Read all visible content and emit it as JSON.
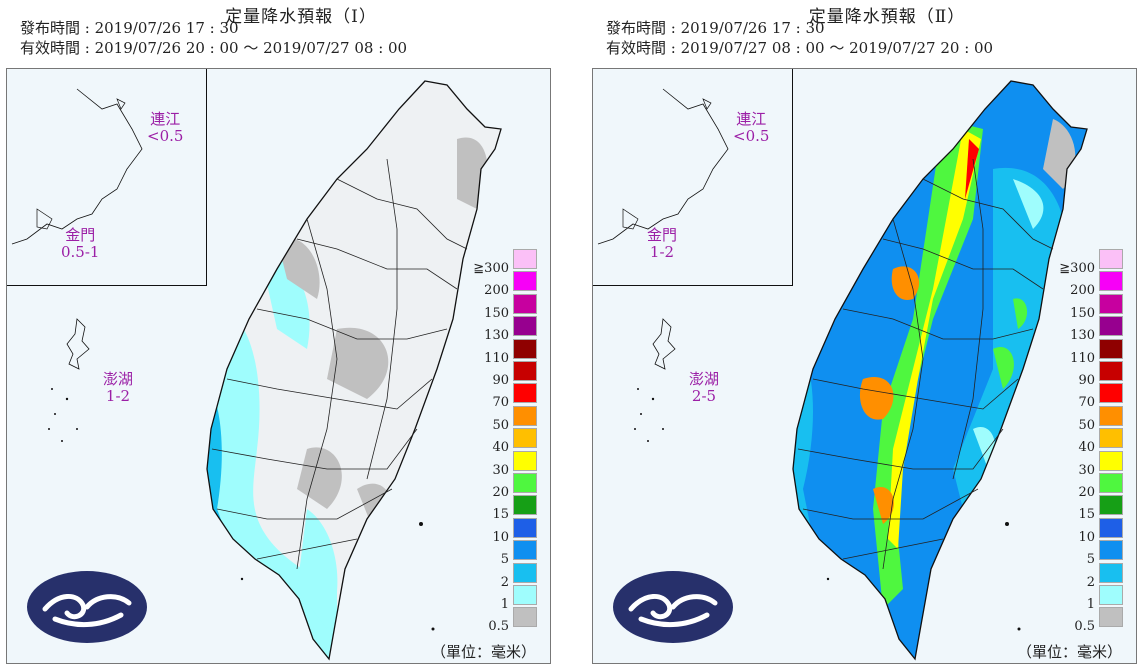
{
  "panels": [
    {
      "title": "定量降水預報（Ⅰ）",
      "issue_time": "發布時間 : 2019/07/26 17 : 30",
      "valid_time": "有效時間 : 2019/07/26 20 : 00 ～ 2019/07/27 08 : 00",
      "islands": [
        {
          "name": "連江",
          "value": "<0.5"
        },
        {
          "name": "金門",
          "value": "0.5-1"
        },
        {
          "name": "澎湖",
          "value": "1-2"
        }
      ],
      "intensity": "light"
    },
    {
      "title": "定量降水預報（Ⅱ）",
      "issue_time": "發布時間 : 2019/07/26 17 : 30",
      "valid_time": "有效時間 : 2019/07/27 08 : 00 ～ 2019/07/27 20 : 00",
      "islands": [
        {
          "name": "連江",
          "value": "<0.5"
        },
        {
          "name": "金門",
          "value": "1-2"
        },
        {
          "name": "澎湖",
          "value": "2-5"
        }
      ],
      "intensity": "heavy"
    }
  ],
  "legend": {
    "levels": [
      {
        "label": "≧300",
        "color": "#fbc0f7"
      },
      {
        "label": "200",
        "color": "#f700f7"
      },
      {
        "label": "150",
        "color": "#c7009f"
      },
      {
        "label": "130",
        "color": "#97008f"
      },
      {
        "label": "110",
        "color": "#8f0000"
      },
      {
        "label": "90",
        "color": "#c70000"
      },
      {
        "label": "70",
        "color": "#ff0000"
      },
      {
        "label": "50",
        "color": "#ff8f00"
      },
      {
        "label": "40",
        "color": "#ffbf00"
      },
      {
        "label": "30",
        "color": "#ffff00"
      },
      {
        "label": "20",
        "color": "#4ff73f"
      },
      {
        "label": "15",
        "color": "#169f16"
      },
      {
        "label": "10",
        "color": "#1e5fe7"
      },
      {
        "label": "5",
        "color": "#0f8ff0"
      },
      {
        "label": "2",
        "color": "#18bff0"
      },
      {
        "label": "1",
        "color": "#9ffdfd"
      },
      {
        "label": "0.5",
        "color": "#c0c0c0"
      }
    ],
    "unit": "（單位：毫米）"
  },
  "logo": {
    "name": "cwb-logo",
    "bg": "#27306b"
  }
}
